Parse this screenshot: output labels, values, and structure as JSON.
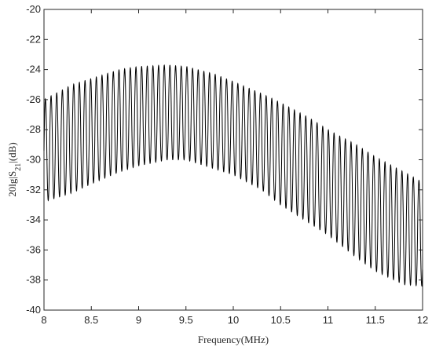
{
  "chart_data": {
    "type": "line",
    "title": "",
    "xlabel": "Frequency(MHz)",
    "ylabel": {
      "prefix": "20lg|S",
      "subscript": "21",
      "suffix": "|(dB)"
    },
    "xlim": [
      8,
      12
    ],
    "ylim": [
      -40,
      -20
    ],
    "x_ticks": [
      "8",
      "8.5",
      "9",
      "9.5",
      "10",
      "10.5",
      "11",
      "11.5",
      "12"
    ],
    "y_ticks": [
      "-40",
      "-38",
      "-36",
      "-34",
      "-32",
      "-30",
      "-28",
      "-26",
      "-24",
      "-22",
      "-20"
    ],
    "grid": false,
    "legend": "none",
    "line_color": "#000000",
    "series": [
      {
        "oscillation_period": 0.0598,
        "envelope_upper": {
          "x": [
            8.0,
            8.3,
            8.5,
            8.8,
            9.0,
            9.3,
            9.5,
            9.8,
            10.0,
            10.3,
            10.5,
            10.8,
            11.0,
            11.3,
            11.5,
            11.8,
            12.0
          ],
          "y": [
            -26.0,
            -25.0,
            -24.6,
            -24.0,
            -23.8,
            -23.7,
            -23.8,
            -24.3,
            -24.8,
            -25.6,
            -26.2,
            -27.2,
            -28.0,
            -29.0,
            -29.8,
            -30.8,
            -31.5
          ]
        },
        "envelope_lower": {
          "x": [
            8.0,
            8.3,
            8.5,
            8.8,
            9.0,
            9.3,
            9.5,
            9.8,
            10.0,
            10.3,
            10.5,
            10.8,
            11.0,
            11.3,
            11.5,
            11.8,
            12.0
          ],
          "y": [
            -32.8,
            -32.2,
            -31.6,
            -30.8,
            -30.4,
            -30.0,
            -30.0,
            -30.6,
            -31.0,
            -32.0,
            -33.0,
            -34.2,
            -35.0,
            -36.5,
            -37.4,
            -38.3,
            -38.4
          ]
        }
      }
    ]
  }
}
